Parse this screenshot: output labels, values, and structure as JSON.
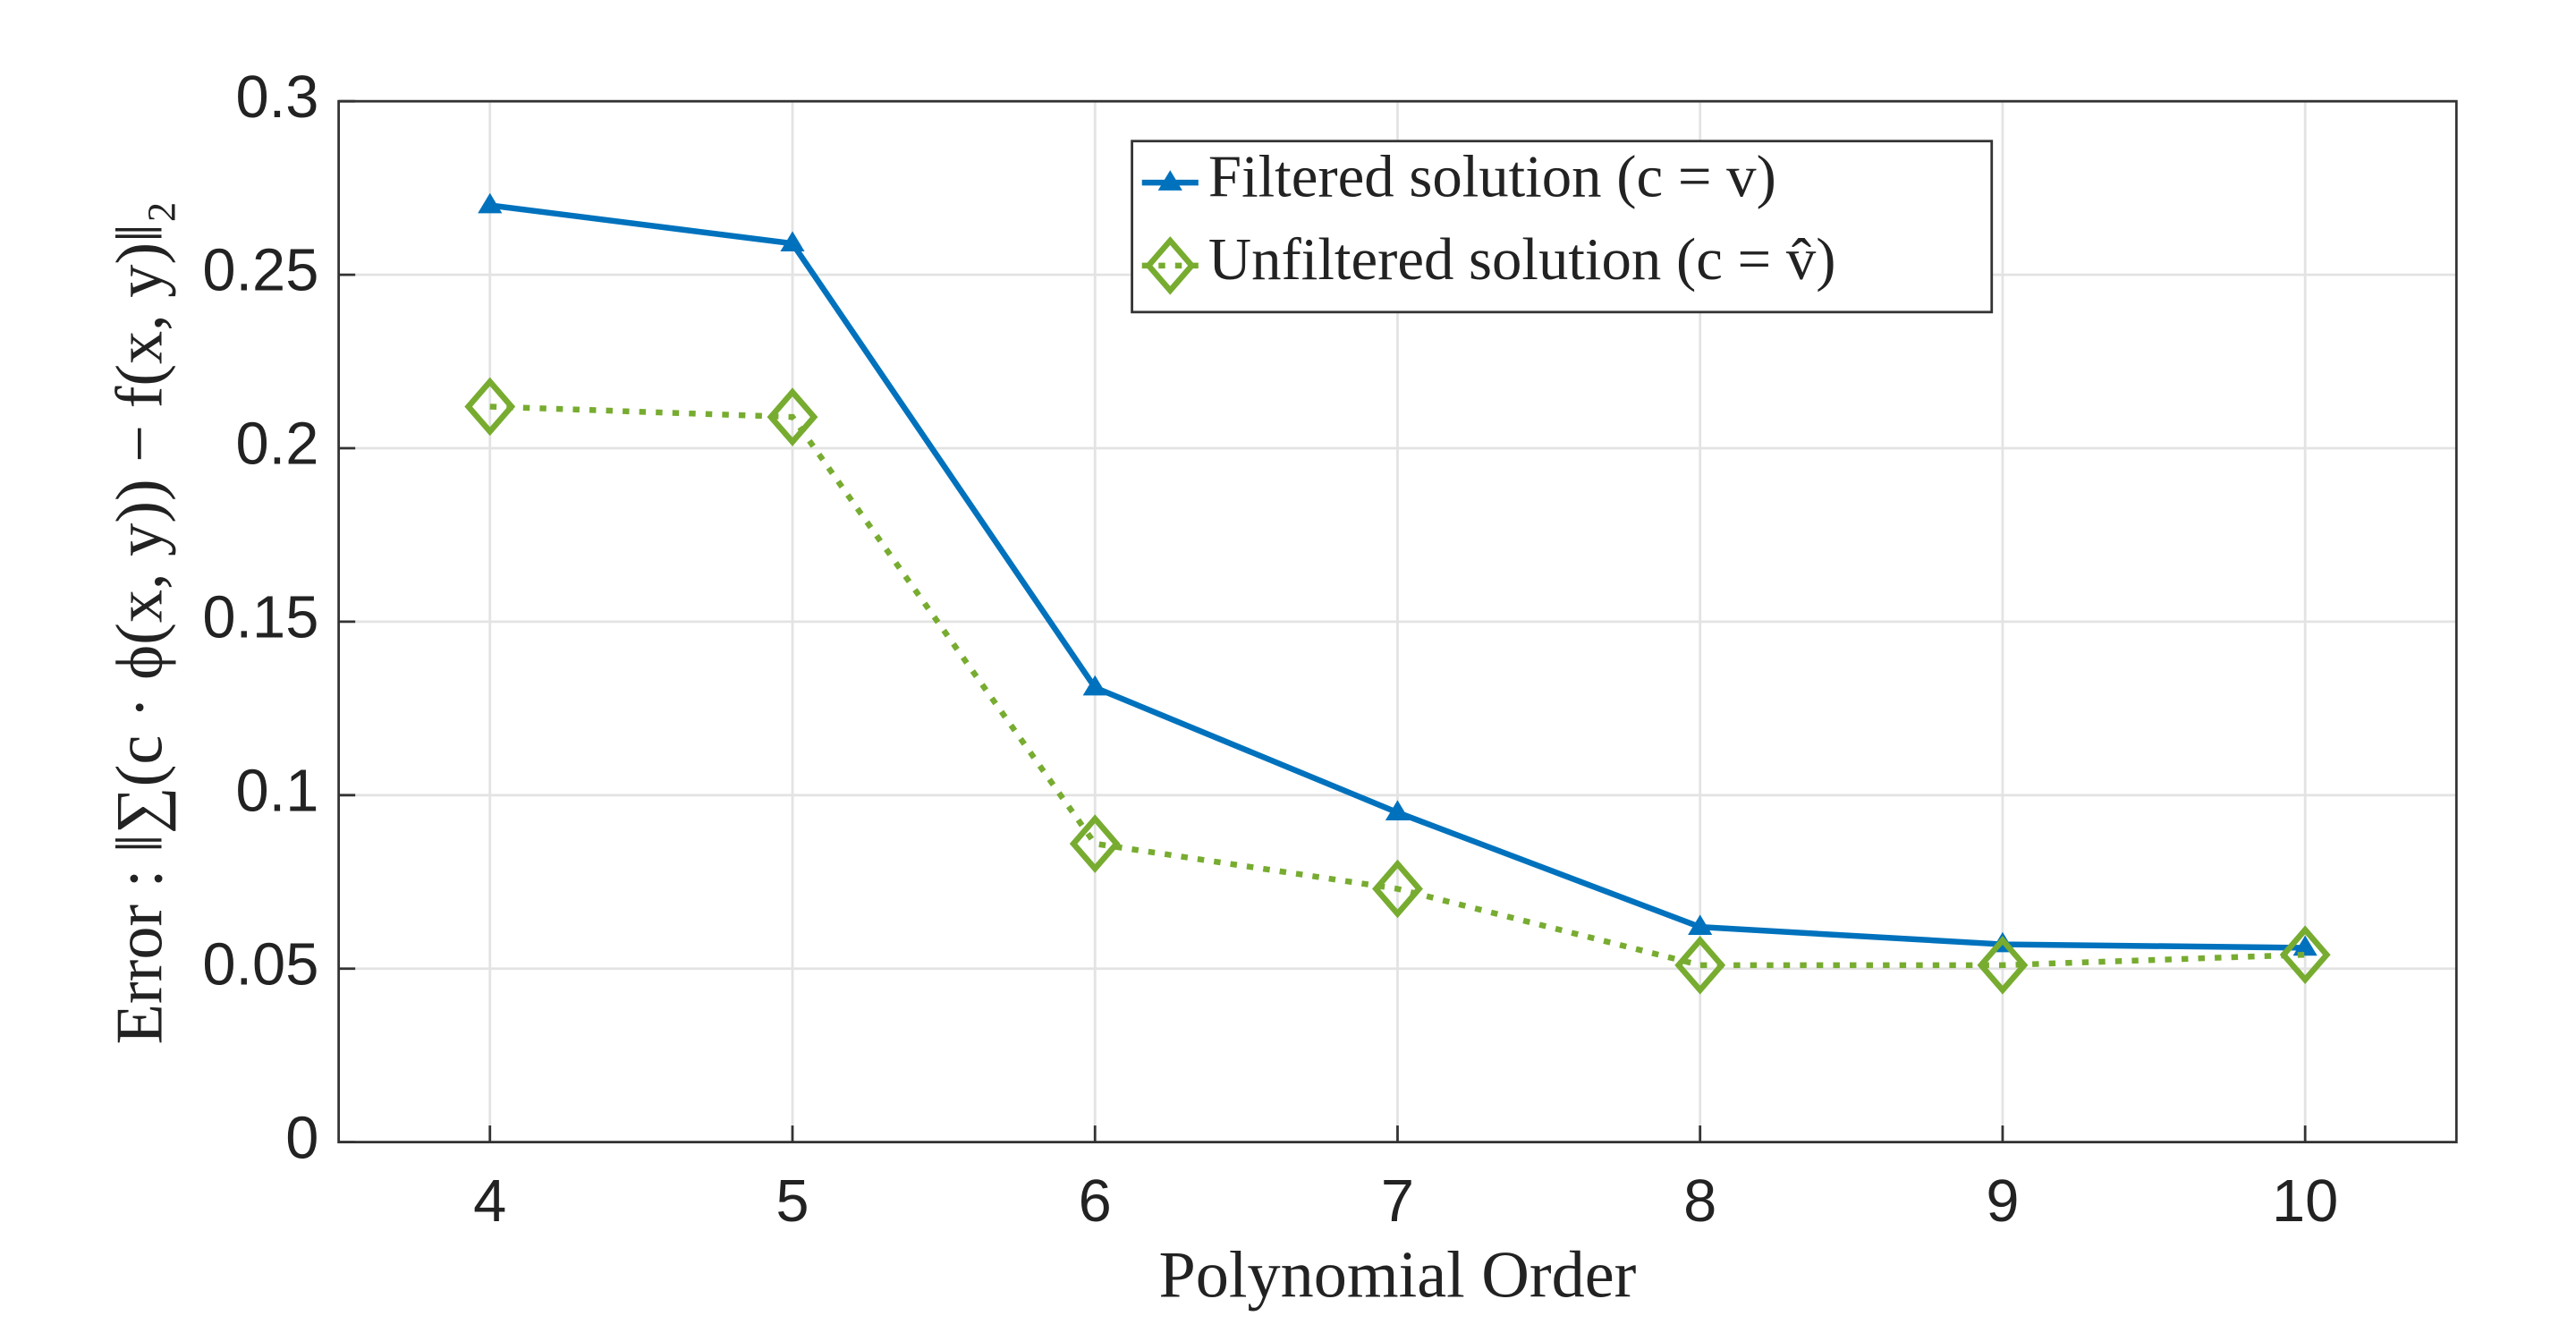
{
  "chart_data": {
    "type": "line",
    "x_label": "Polynomial Order",
    "y_label": "Error : ‖∑(c · ϕ(x, y)) − f(x, y)‖₂",
    "x": [
      4,
      5,
      6,
      7,
      8,
      9,
      10
    ],
    "series": [
      {
        "name": "Filtered solution (c = v)",
        "color": "#0072bd",
        "line_style": "solid",
        "marker": "triangle",
        "values": [
          0.27,
          0.259,
          0.131,
          0.095,
          0.062,
          0.057,
          0.056
        ]
      },
      {
        "name": "Unfiltered solution (c = v̂)",
        "color": "#77ac30",
        "line_style": "dotted",
        "marker": "diamond",
        "values": [
          0.212,
          0.209,
          0.086,
          0.073,
          0.051,
          0.051,
          0.054
        ]
      }
    ],
    "xlim": [
      3.5,
      10.5
    ],
    "xticks": [
      4,
      5,
      6,
      7,
      8,
      9,
      10
    ],
    "ylim": [
      0,
      0.3
    ],
    "yticks": [
      0,
      0.05,
      0.1,
      0.15,
      0.2,
      0.25,
      0.3
    ],
    "grid": true,
    "legend_position": "top-right"
  }
}
